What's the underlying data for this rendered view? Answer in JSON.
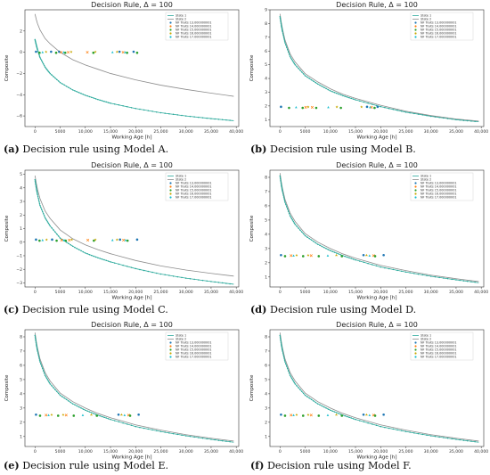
{
  "colors": {
    "state1": "#2aa99b",
    "state2": "#8c8c8c",
    "marker_blue": "#1f77b4",
    "marker_orange": "#ff7f0e",
    "marker_green": "#2ca02c",
    "marker_yellow": "#c8a800",
    "marker_teal": "#17becf"
  },
  "chart_data": [
    {
      "type": "line",
      "title": "Decision Rule, Δ = 100",
      "xlabel": "Working Age [h]",
      "ylabel": "Composite",
      "xlim": [
        -2000,
        40500
      ],
      "ylim": [
        -7,
        4
      ],
      "xticks": [
        0,
        5000,
        10000,
        15000,
        20000,
        25000,
        30000,
        35000,
        40000
      ],
      "xtick_labels": [
        "0",
        "5000",
        "10,000",
        "15,000",
        "20,000",
        "25,000",
        "30,000",
        "35,000",
        "40,000"
      ],
      "yticks": [
        -6,
        -4,
        -2,
        0,
        2
      ],
      "ytick_labels": [
        "−6",
        "−4",
        "−2",
        "0",
        "2"
      ],
      "series": [
        {
          "name": "State 1",
          "x": [
            0,
            250,
            500,
            1000,
            2000,
            3000,
            5000,
            7500,
            10000,
            12500,
            15000,
            20000,
            25000,
            30000,
            35000,
            39500
          ],
          "y": [
            1.2,
            0.7,
            0.25,
            -0.5,
            -1.4,
            -2.0,
            -2.85,
            -3.55,
            -4.05,
            -4.45,
            -4.8,
            -5.3,
            -5.7,
            -6.0,
            -6.25,
            -6.45
          ]
        },
        {
          "name": "State 2",
          "x": [
            0,
            250,
            500,
            1000,
            2000,
            3000,
            5000,
            7500,
            10000,
            12500,
            15000,
            20000,
            25000,
            30000,
            35000,
            39500
          ],
          "y": [
            3.6,
            3.1,
            2.7,
            2.1,
            1.3,
            0.8,
            0.0,
            -0.7,
            -1.2,
            -1.6,
            -2.0,
            -2.6,
            -3.1,
            -3.5,
            -3.85,
            -4.15
          ]
        }
      ],
      "markers_y": 0.0,
      "marker_series": [
        {
          "name": "NF Traits 13.000000001",
          "x": [
            200,
            3200,
            4800,
            16800,
            19600
          ]
        },
        {
          "name": "NF Traits 14.000000001",
          "x": [
            5200,
            6600,
            10400,
            17500
          ]
        },
        {
          "name": "NF Traits 15.000000001",
          "x": [
            900,
            4200,
            6000,
            11600,
            18300,
            20300
          ]
        },
        {
          "name": "NF Traits 16.000000001",
          "x": [
            2200,
            7200,
            12000,
            16300
          ]
        },
        {
          "name": "NF Traits 17.000000001",
          "x": [
            1500,
            5700,
            15400,
            17900
          ]
        }
      ],
      "legend_loc": "top-right"
    },
    {
      "type": "line",
      "title": "Decision Rule, Δ = 100",
      "xlabel": "Working Age [h]",
      "ylabel": "Composite",
      "xlim": [
        -2000,
        40500
      ],
      "ylim": [
        0.5,
        9
      ],
      "xticks": [
        0,
        5000,
        10000,
        15000,
        20000,
        25000,
        30000,
        35000,
        40000
      ],
      "xtick_labels": [
        "0",
        "5000",
        "10,000",
        "15,000",
        "20,000",
        "25,000",
        "30,000",
        "35,000",
        "40,000"
      ],
      "yticks": [
        1,
        2,
        3,
        4,
        5,
        6,
        7,
        8,
        9
      ],
      "ytick_labels": [
        "1",
        "2",
        "3",
        "4",
        "5",
        "6",
        "7",
        "8",
        "9"
      ],
      "series": [
        {
          "name": "State 1",
          "x": [
            0,
            250,
            500,
            1000,
            2000,
            3000,
            5000,
            7500,
            10000,
            12500,
            15000,
            20000,
            25000,
            30000,
            35000,
            39500
          ],
          "y": [
            8.5,
            7.9,
            7.4,
            6.6,
            5.6,
            5.0,
            4.2,
            3.6,
            3.1,
            2.75,
            2.45,
            1.95,
            1.55,
            1.25,
            1.0,
            0.85
          ]
        },
        {
          "name": "State 2",
          "x": [
            0,
            250,
            500,
            1000,
            2000,
            3000,
            5000,
            7500,
            10000,
            12500,
            15000,
            20000,
            25000,
            30000,
            35000,
            39500
          ],
          "y": [
            8.7,
            8.1,
            7.6,
            6.8,
            5.8,
            5.2,
            4.35,
            3.75,
            3.25,
            2.85,
            2.55,
            2.05,
            1.62,
            1.3,
            1.05,
            0.9
          ]
        }
      ],
      "markers_y": 1.9,
      "marker_series": [
        {
          "name": "NF Traits 13.000000001",
          "x": [
            200,
            17300,
            19400
          ]
        },
        {
          "name": "NF Traits 14.000000001",
          "x": [
            5100,
            6400,
            18200
          ]
        },
        {
          "name": "NF Traits 15.000000001",
          "x": [
            1800,
            4500,
            7200,
            12100,
            18800
          ]
        },
        {
          "name": "NF Traits 16.000000001",
          "x": [
            5600,
            11300,
            16200
          ]
        },
        {
          "name": "NF Traits 17.000000001",
          "x": [
            3200,
            9600,
            17900
          ]
        }
      ],
      "legend_loc": "top-right"
    },
    {
      "type": "line",
      "title": "Decision Rule, Δ = 100",
      "xlabel": "Working Age [h]",
      "ylabel": "Composite",
      "xlim": [
        -2000,
        40500
      ],
      "ylim": [
        -3.3,
        5.3
      ],
      "xticks": [
        0,
        5000,
        10000,
        15000,
        20000,
        25000,
        30000,
        35000,
        40000
      ],
      "xtick_labels": [
        "0",
        "5000",
        "10,000",
        "15,000",
        "20,000",
        "25,000",
        "30,000",
        "35,000",
        "40,000"
      ],
      "yticks": [
        -3,
        -2,
        -1,
        0,
        1,
        2,
        3,
        4,
        5
      ],
      "ytick_labels": [
        "−3",
        "−2",
        "−1",
        "0",
        "1",
        "2",
        "3",
        "4",
        "5"
      ],
      "series": [
        {
          "name": "State 1",
          "x": [
            0,
            250,
            500,
            1000,
            2000,
            3000,
            5000,
            7500,
            10000,
            12500,
            15000,
            20000,
            25000,
            30000,
            35000,
            39500
          ],
          "y": [
            4.6,
            4.0,
            3.5,
            2.7,
            1.8,
            1.2,
            0.3,
            -0.3,
            -0.8,
            -1.15,
            -1.45,
            -1.95,
            -2.35,
            -2.65,
            -2.9,
            -3.1
          ]
        },
        {
          "name": "State 2",
          "x": [
            0,
            250,
            500,
            1000,
            2000,
            3000,
            5000,
            7500,
            10000,
            12500,
            15000,
            20000,
            25000,
            30000,
            35000,
            39500
          ],
          "y": [
            4.9,
            4.35,
            3.9,
            3.2,
            2.3,
            1.75,
            0.9,
            0.25,
            -0.2,
            -0.55,
            -0.85,
            -1.35,
            -1.75,
            -2.05,
            -2.3,
            -2.5
          ]
        }
      ],
      "markers_y": 0.15,
      "marker_series": [
        {
          "name": "NF Traits 13.000000001",
          "x": [
            200,
            3400,
            16900,
            20300
          ]
        },
        {
          "name": "NF Traits 14.000000001",
          "x": [
            5300,
            6800,
            10500,
            17600
          ]
        },
        {
          "name": "NF Traits 15.000000001",
          "x": [
            900,
            4300,
            6100,
            11700,
            18400
          ]
        },
        {
          "name": "NF Traits 16.000000001",
          "x": [
            2300,
            7300,
            12000,
            16300
          ]
        },
        {
          "name": "NF Traits 17.000000001",
          "x": [
            1500,
            5800,
            15400,
            18000
          ]
        }
      ],
      "legend_loc": "top-right"
    },
    {
      "type": "line",
      "title": "Decision Rule, Δ = 100",
      "xlabel": "Working Age [h]",
      "ylabel": "Composite",
      "xlim": [
        -2000,
        40500
      ],
      "ylim": [
        0.3,
        8.5
      ],
      "xticks": [
        0,
        5000,
        10000,
        15000,
        20000,
        25000,
        30000,
        35000,
        40000
      ],
      "xtick_labels": [
        "0",
        "5000",
        "10,000",
        "15,000",
        "20,000",
        "25,000",
        "30,000",
        "35,000",
        "40,000"
      ],
      "yticks": [
        1,
        2,
        3,
        4,
        5,
        6,
        7,
        8
      ],
      "ytick_labels": [
        "1",
        "2",
        "3",
        "4",
        "5",
        "6",
        "7",
        "8"
      ],
      "series": [
        {
          "name": "State 1",
          "x": [
            0,
            250,
            500,
            1000,
            2000,
            3000,
            5000,
            7500,
            10000,
            12500,
            15000,
            20000,
            25000,
            30000,
            35000,
            39500
          ],
          "y": [
            8.1,
            7.5,
            7.0,
            6.25,
            5.3,
            4.7,
            3.9,
            3.3,
            2.85,
            2.5,
            2.2,
            1.7,
            1.35,
            1.05,
            0.8,
            0.6
          ]
        },
        {
          "name": "State 2",
          "x": [
            0,
            250,
            500,
            1000,
            2000,
            3000,
            5000,
            7500,
            10000,
            12500,
            15000,
            20000,
            25000,
            30000,
            35000,
            39500
          ],
          "y": [
            8.3,
            7.7,
            7.2,
            6.45,
            5.5,
            4.9,
            4.05,
            3.45,
            3.0,
            2.62,
            2.32,
            1.82,
            1.45,
            1.13,
            0.88,
            0.68
          ]
        }
      ],
      "markers_y": 2.5,
      "marker_series": [
        {
          "name": "NF Traits 13.000000001",
          "x": [
            200,
            16600,
            20600
          ]
        },
        {
          "name": "NF Traits 14.000000001",
          "x": [
            2200,
            6200,
            18600
          ]
        },
        {
          "name": "NF Traits 15.000000001",
          "x": [
            1000,
            4600,
            7700,
            12300,
            18900
          ]
        },
        {
          "name": "NF Traits 16.000000001",
          "x": [
            3300,
            5600,
            11200,
            17200
          ]
        },
        {
          "name": "NF Traits 17.000000001",
          "x": [
            2700,
            9500,
            17800
          ]
        }
      ],
      "legend_loc": "top-right"
    },
    {
      "type": "line",
      "title": "Decision Rule, Δ = 100",
      "xlabel": "Working Age [h]",
      "ylabel": "Composite",
      "xlim": [
        -2000,
        40500
      ],
      "ylim": [
        0.3,
        8.5
      ],
      "xticks": [
        0,
        5000,
        10000,
        15000,
        20000,
        25000,
        30000,
        35000,
        40000
      ],
      "xtick_labels": [
        "0",
        "5000",
        "10,000",
        "15,000",
        "20,000",
        "25,000",
        "30,000",
        "35,000",
        "40,000"
      ],
      "yticks": [
        1,
        2,
        3,
        4,
        5,
        6,
        7,
        8
      ],
      "ytick_labels": [
        "1",
        "2",
        "3",
        "4",
        "5",
        "6",
        "7",
        "8"
      ],
      "series": [
        {
          "name": "State 1",
          "x": [
            0,
            250,
            500,
            1000,
            2000,
            3000,
            5000,
            7500,
            10000,
            12500,
            15000,
            20000,
            25000,
            30000,
            35000,
            39500
          ],
          "y": [
            8.1,
            7.5,
            7.0,
            6.25,
            5.3,
            4.7,
            3.9,
            3.3,
            2.85,
            2.5,
            2.2,
            1.7,
            1.35,
            1.05,
            0.8,
            0.6
          ]
        },
        {
          "name": "State 2",
          "x": [
            0,
            250,
            500,
            1000,
            2000,
            3000,
            5000,
            7500,
            10000,
            12500,
            15000,
            20000,
            25000,
            30000,
            35000,
            39500
          ],
          "y": [
            8.3,
            7.7,
            7.2,
            6.45,
            5.5,
            4.9,
            4.05,
            3.45,
            3.0,
            2.62,
            2.32,
            1.82,
            1.45,
            1.13,
            0.88,
            0.68
          ]
        }
      ],
      "markers_y": 2.5,
      "marker_series": [
        {
          "name": "NF Traits 13.000000001",
          "x": [
            200,
            16600,
            20600
          ]
        },
        {
          "name": "NF Traits 14.000000001",
          "x": [
            2200,
            6200,
            18600
          ]
        },
        {
          "name": "NF Traits 15.000000001",
          "x": [
            1000,
            4600,
            7700,
            12300,
            18900
          ]
        },
        {
          "name": "NF Traits 16.000000001",
          "x": [
            3300,
            5600,
            11200,
            17200
          ]
        },
        {
          "name": "NF Traits 17.000000001",
          "x": [
            2700,
            9500,
            17800
          ]
        }
      ],
      "legend_loc": "top-right"
    },
    {
      "type": "line",
      "title": "Decision Rule, Δ = 100",
      "xlabel": "Working Age [h]",
      "ylabel": "Composite",
      "xlim": [
        -2000,
        40500
      ],
      "ylim": [
        0.3,
        8.5
      ],
      "xticks": [
        0,
        5000,
        10000,
        15000,
        20000,
        25000,
        30000,
        35000,
        40000
      ],
      "xtick_labels": [
        "0",
        "5000",
        "10,000",
        "15,000",
        "20,000",
        "25,000",
        "30,000",
        "35,000",
        "40,000"
      ],
      "yticks": [
        1,
        2,
        3,
        4,
        5,
        6,
        7,
        8
      ],
      "ytick_labels": [
        "1",
        "2",
        "3",
        "4",
        "5",
        "6",
        "7",
        "8"
      ],
      "series": [
        {
          "name": "State 1",
          "x": [
            0,
            250,
            500,
            1000,
            2000,
            3000,
            5000,
            7500,
            10000,
            12500,
            15000,
            20000,
            25000,
            30000,
            35000,
            39500
          ],
          "y": [
            8.1,
            7.5,
            7.0,
            6.25,
            5.3,
            4.7,
            3.9,
            3.3,
            2.85,
            2.5,
            2.2,
            1.7,
            1.35,
            1.05,
            0.8,
            0.6
          ]
        },
        {
          "name": "State 2",
          "x": [
            0,
            250,
            500,
            1000,
            2000,
            3000,
            5000,
            7500,
            10000,
            12500,
            15000,
            20000,
            25000,
            30000,
            35000,
            39500
          ],
          "y": [
            8.3,
            7.7,
            7.2,
            6.45,
            5.5,
            4.9,
            4.05,
            3.45,
            3.0,
            2.62,
            2.32,
            1.82,
            1.45,
            1.13,
            0.88,
            0.68
          ]
        }
      ],
      "markers_y": 2.5,
      "marker_series": [
        {
          "name": "NF Traits 13.000000001",
          "x": [
            200,
            16600,
            20600
          ]
        },
        {
          "name": "NF Traits 14.000000001",
          "x": [
            2200,
            6200,
            18600
          ]
        },
        {
          "name": "NF Traits 15.000000001",
          "x": [
            1000,
            4600,
            7700,
            12300,
            18900
          ]
        },
        {
          "name": "NF Traits 16.000000001",
          "x": [
            3300,
            5600,
            11200,
            17200
          ]
        },
        {
          "name": "NF Traits 17.000000001",
          "x": [
            2700,
            9500,
            17800
          ]
        }
      ],
      "legend_loc": "top-right"
    }
  ],
  "captions": [
    {
      "label": "(a)",
      "text": " Decision rule using Model A."
    },
    {
      "label": "(b)",
      "text": " Decision rule using Model B."
    },
    {
      "label": "(c)",
      "text": " Decision rule using Model C."
    },
    {
      "label": "(d)",
      "text": " Decision rule using Model D."
    },
    {
      "label": "(e)",
      "text": " Decision rule using Model E."
    },
    {
      "label": "(f)",
      "text": " Decision rule using Model F."
    }
  ]
}
